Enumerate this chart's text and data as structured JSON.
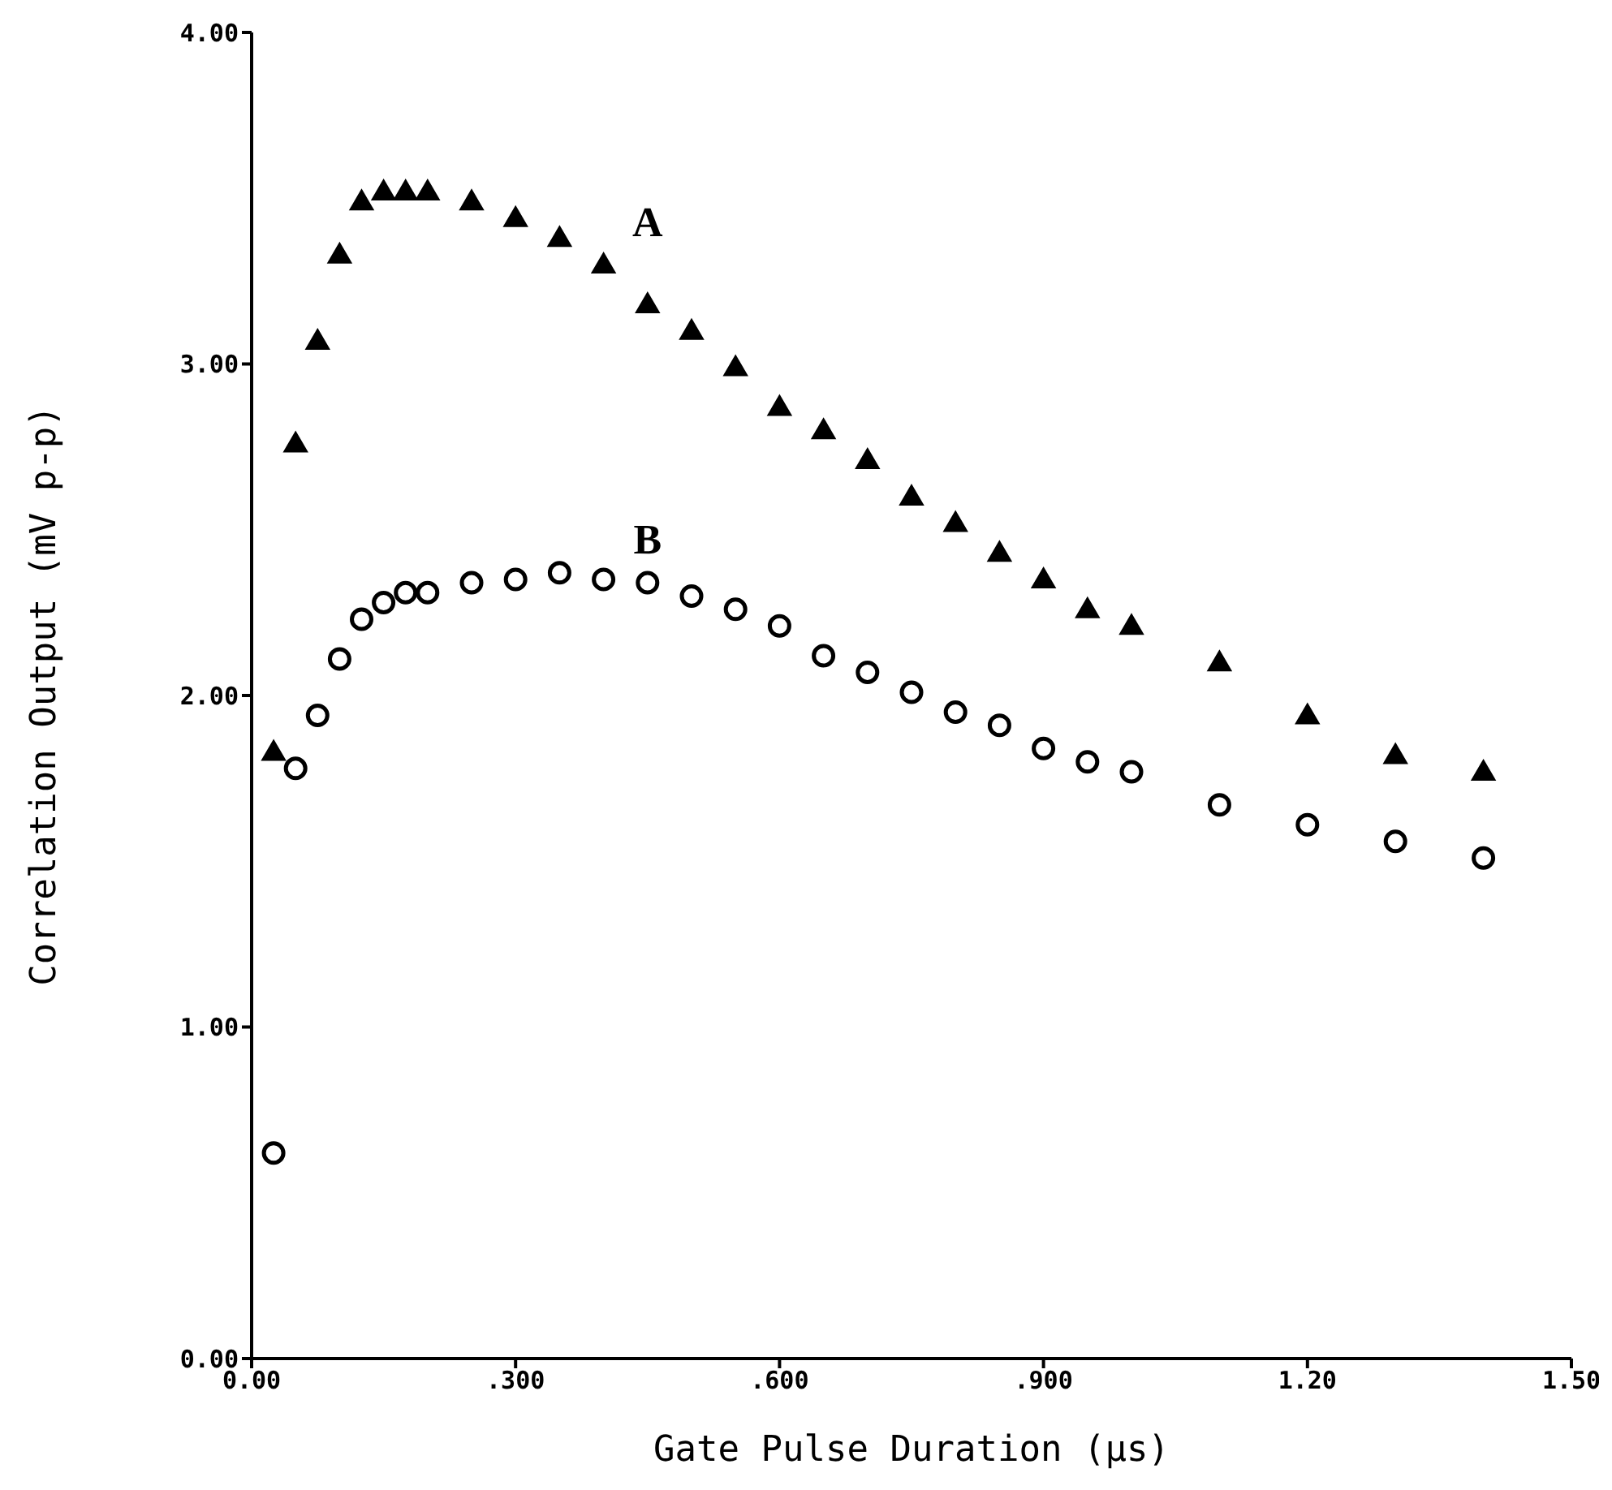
{
  "chart_data": {
    "type": "scatter",
    "xlabel": "Gate Pulse Duration  (µs)",
    "ylabel": "Correlation Output  (mV p-p)",
    "x": [
      0.025,
      0.05,
      0.075,
      0.1,
      0.125,
      0.15,
      0.175,
      0.2,
      0.25,
      0.3,
      0.35,
      0.4,
      0.45,
      0.5,
      0.55,
      0.6,
      0.65,
      0.7,
      0.75,
      0.8,
      0.85,
      0.9,
      0.95,
      1.0,
      1.1,
      1.2,
      1.3,
      1.4
    ],
    "series": [
      {
        "name": "A",
        "color": "#000000",
        "marker": "triangle",
        "values": [
          1.83,
          2.76,
          3.07,
          3.33,
          3.49,
          3.52,
          3.52,
          3.52,
          3.49,
          3.44,
          3.38,
          3.3,
          3.18,
          3.1,
          2.99,
          2.87,
          2.8,
          2.71,
          2.6,
          2.52,
          2.43,
          2.35,
          2.26,
          2.21,
          2.1,
          1.94,
          1.82,
          1.77
        ]
      },
      {
        "name": "B",
        "color": "#000000",
        "marker": "circle",
        "values": [
          0.62,
          1.78,
          1.94,
          2.11,
          2.23,
          2.28,
          2.31,
          2.31,
          2.34,
          2.35,
          2.37,
          2.35,
          2.34,
          2.3,
          2.26,
          2.21,
          2.12,
          2.07,
          2.01,
          1.95,
          1.91,
          1.84,
          1.8,
          1.77,
          1.67,
          1.61,
          1.56,
          1.51
        ]
      }
    ],
    "xlim": [
      0,
      1.5
    ],
    "xticks": [
      {
        "value": 0,
        "label": "0.00"
      },
      {
        "value": 0.3,
        "label": ".300"
      },
      {
        "value": 0.6,
        "label": ".600"
      },
      {
        "value": 0.9,
        "label": ".900"
      },
      {
        "value": 1.2,
        "label": "1.20"
      },
      {
        "value": 1.5,
        "label": "1.50"
      }
    ],
    "ylim": [
      0,
      4
    ],
    "yticks": [
      {
        "value": 0,
        "label": "0.00"
      },
      {
        "value": 1,
        "label": "1.00"
      },
      {
        "value": 2,
        "label": "2.00"
      },
      {
        "value": 3,
        "label": "3.00"
      },
      {
        "value": 4,
        "label": "4.00"
      }
    ],
    "grid": false,
    "legend": false
  }
}
